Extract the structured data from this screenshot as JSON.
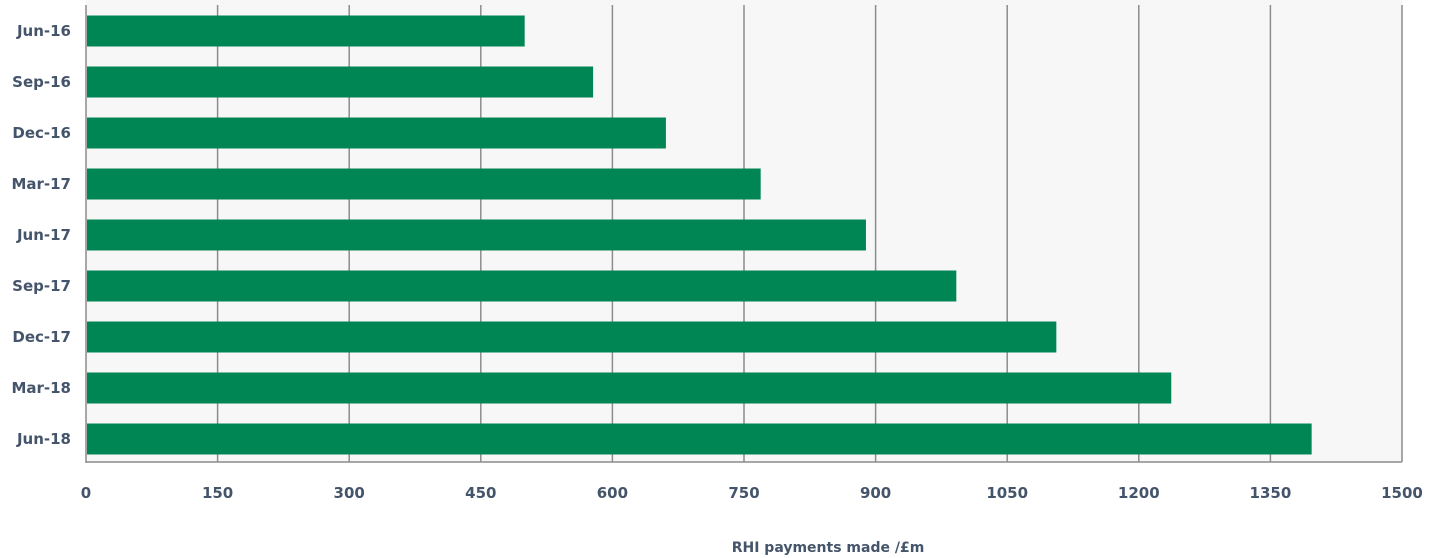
{
  "chart_data": {
    "type": "bar",
    "orientation": "horizontal",
    "categories": [
      "Jun-16",
      "Sep-16",
      "Dec-16",
      "Mar-17",
      "Jun-17",
      "Sep-17",
      "Dec-17",
      "Mar-18",
      "Jun-18"
    ],
    "values": [
      500,
      578,
      661,
      769,
      889,
      992,
      1106,
      1237,
      1397
    ],
    "xlabel": "RHI payments made /£m",
    "ylabel": "",
    "title": "",
    "xlim": [
      0,
      1500
    ],
    "xticks": [
      "0",
      "150",
      "300",
      "450",
      "600",
      "750",
      "900",
      "1050",
      "1200",
      "1350",
      "1500"
    ],
    "grid": "vertical",
    "legend": "none",
    "colors": {
      "bar": "#008555",
      "plot_background": "#f7f7f7",
      "gridline": "#8c8c8c",
      "axis": "#8c8c8c",
      "text": "#44546a"
    }
  }
}
